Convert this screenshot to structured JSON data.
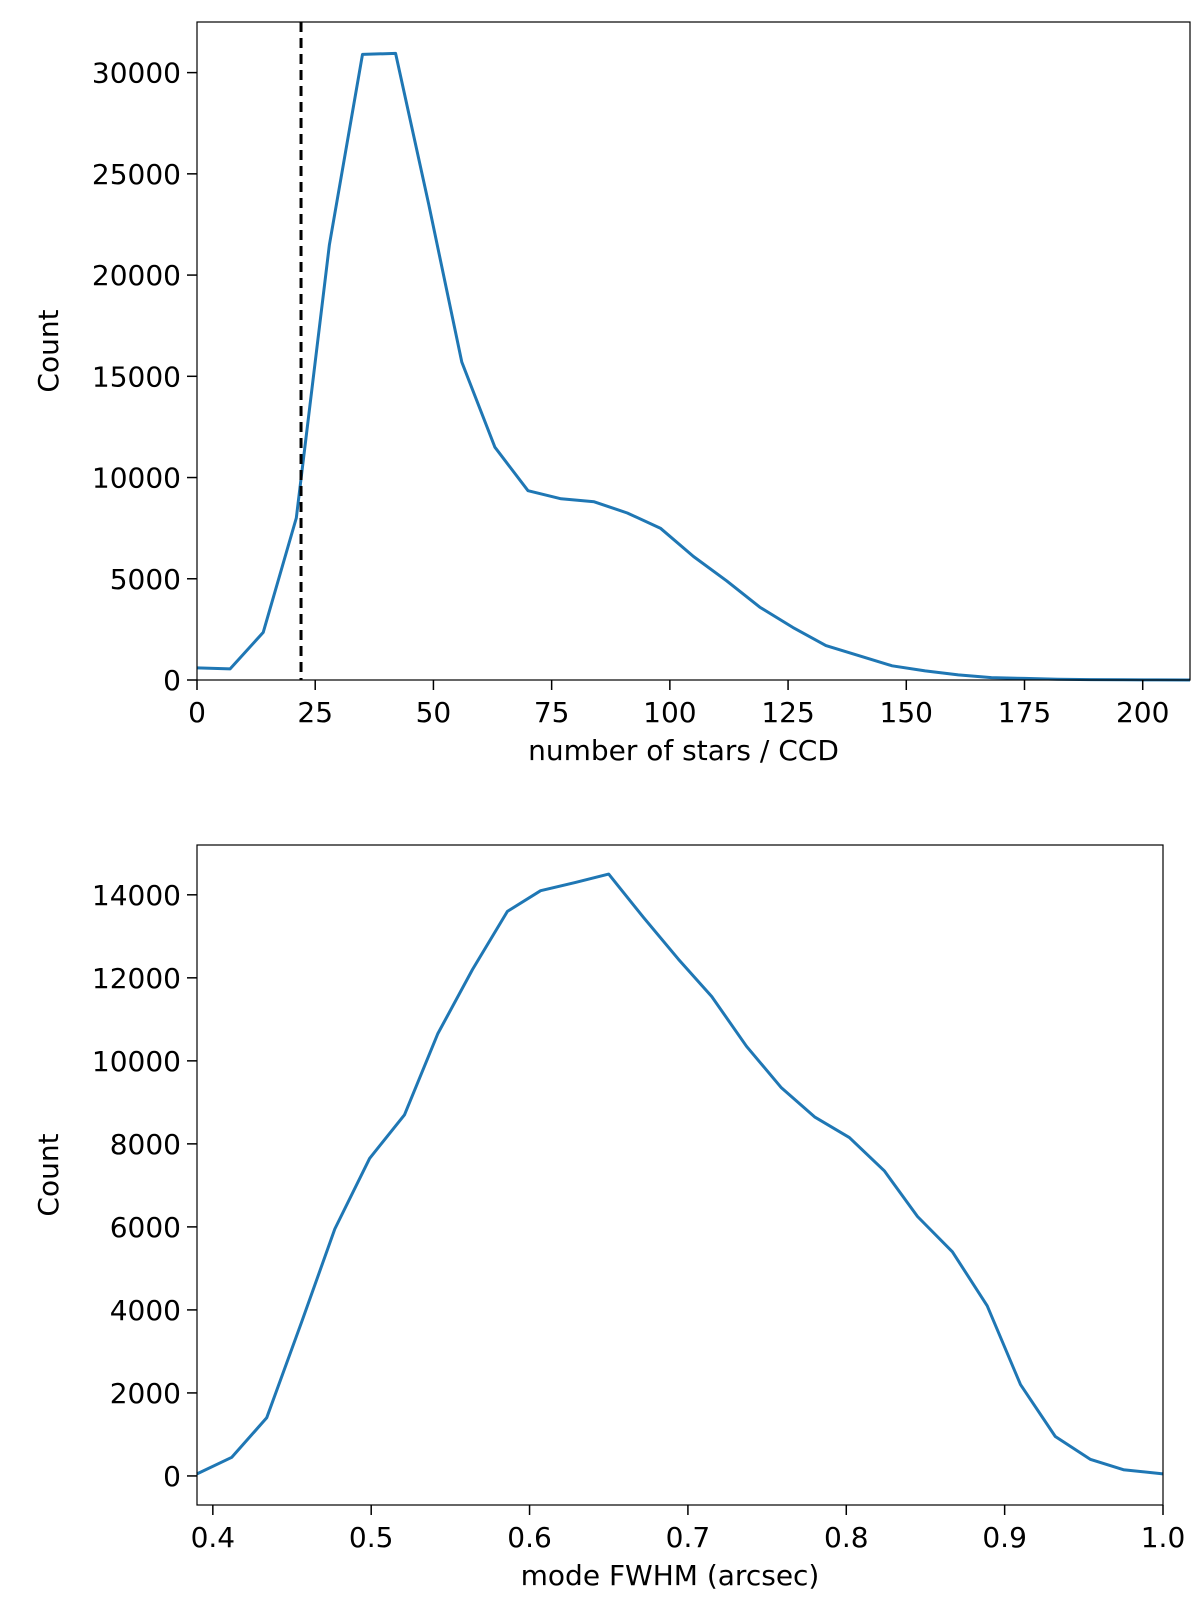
{
  "chart_data": [
    {
      "type": "line",
      "xlabel": "number of stars / CCD",
      "ylabel": "Count",
      "xlim": [
        0,
        210
      ],
      "ylim": [
        0,
        32500
      ],
      "xticks": [
        0,
        25,
        50,
        75,
        100,
        125,
        150,
        175,
        200
      ],
      "yticks": [
        0,
        5000,
        10000,
        15000,
        20000,
        25000,
        30000
      ],
      "grid": false,
      "series": [
        {
          "color": "#1f77b4",
          "x": [
            0,
            7,
            14,
            21,
            28,
            35,
            42,
            49,
            56,
            63,
            70,
            77,
            84,
            91,
            98,
            105,
            112,
            119,
            126,
            133,
            140,
            147,
            154,
            161,
            168,
            175,
            182,
            189,
            196,
            203,
            210
          ],
          "values": [
            600,
            550,
            2350,
            8000,
            21500,
            30900,
            30950,
            23500,
            15700,
            11500,
            9350,
            8950,
            8800,
            8250,
            7500,
            6100,
            4900,
            3600,
            2600,
            1700,
            1200,
            700,
            450,
            250,
            120,
            80,
            40,
            20,
            10,
            5,
            0
          ]
        }
      ],
      "reference_lines": [
        {
          "orientation": "vertical",
          "x": 22,
          "style": "dashed",
          "color": "#000000"
        }
      ]
    },
    {
      "type": "line",
      "xlabel": "mode FWHM (arcsec)",
      "ylabel": "Count",
      "xlim": [
        0.39,
        1.0
      ],
      "ylim": [
        -700,
        15200
      ],
      "xticks": [
        0.4,
        0.5,
        0.6,
        0.7,
        0.8,
        0.9,
        1.0
      ],
      "yticks": [
        0,
        2000,
        4000,
        6000,
        8000,
        10000,
        12000,
        14000
      ],
      "grid": false,
      "series": [
        {
          "color": "#1f77b4",
          "x": [
            0.39,
            0.412,
            0.434,
            0.456,
            0.477,
            0.499,
            0.521,
            0.542,
            0.564,
            0.586,
            0.607,
            0.629,
            0.65,
            0.672,
            0.694,
            0.715,
            0.737,
            0.759,
            0.78,
            0.802,
            0.824,
            0.845,
            0.867,
            0.889,
            0.91,
            0.932,
            0.954,
            0.975,
            1.0
          ],
          "values": [
            50,
            450,
            1400,
            3700,
            5950,
            7650,
            8700,
            10650,
            12200,
            13600,
            14100,
            14300,
            14500,
            13450,
            12450,
            11550,
            10350,
            9350,
            8650,
            8150,
            7350,
            6250,
            5400,
            4100,
            2200,
            950,
            400,
            150,
            50
          ]
        }
      ]
    }
  ]
}
